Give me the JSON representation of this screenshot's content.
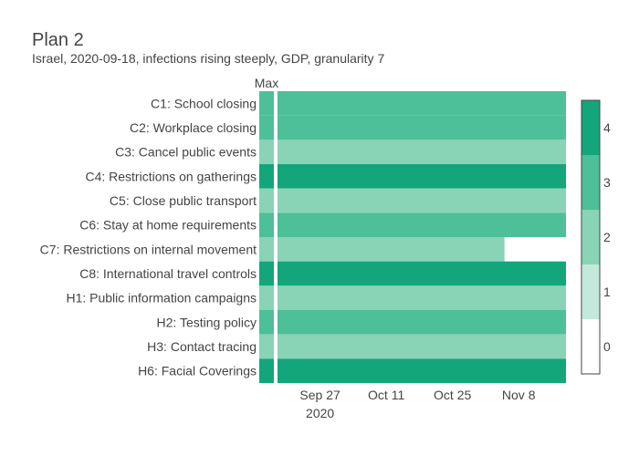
{
  "chart_data": {
    "type": "heatmap",
    "title": "Plan 2",
    "subtitle": "Israel, 2020-09-18, infections rising steeply, GDP, granularity 7",
    "max_label": "Max",
    "rows": [
      {
        "label": "C1: School closing",
        "max": 3,
        "value": 3,
        "end": "2020-11-18"
      },
      {
        "label": "C2: Workplace closing",
        "max": 3,
        "value": 3,
        "end": "2020-11-18"
      },
      {
        "label": "C3: Cancel public events",
        "max": 2,
        "value": 2,
        "end": "2020-11-18"
      },
      {
        "label": "C4: Restrictions on gatherings",
        "max": 4,
        "value": 4,
        "end": "2020-11-18"
      },
      {
        "label": "C5: Close public transport",
        "max": 2,
        "value": 2,
        "end": "2020-11-18"
      },
      {
        "label": "C6: Stay at home requirements",
        "max": 3,
        "value": 3,
        "end": "2020-11-18"
      },
      {
        "label": "C7: Restrictions on internal movement",
        "max": 2,
        "value": 2,
        "end": "2020-11-05"
      },
      {
        "label": "C8: International travel controls",
        "max": 4,
        "value": 4,
        "end": "2020-11-18"
      },
      {
        "label": "H1: Public information campaigns",
        "max": 2,
        "value": 2,
        "end": "2020-11-18"
      },
      {
        "label": "H2: Testing policy",
        "max": 3,
        "value": 3,
        "end": "2020-11-18"
      },
      {
        "label": "H3: Contact tracing",
        "max": 2,
        "value": 2,
        "end": "2020-11-18"
      },
      {
        "label": "H6: Facial Coverings",
        "max": 4,
        "value": 4,
        "end": "2020-11-18"
      }
    ],
    "x_range": [
      "2020-09-18",
      "2020-11-18"
    ],
    "x_ticks": [
      {
        "date": "2020-09-27",
        "label": "Sep 27",
        "sublabel": "2020"
      },
      {
        "date": "2020-10-11",
        "label": "Oct 11",
        "sublabel": ""
      },
      {
        "date": "2020-10-25",
        "label": "Oct 25",
        "sublabel": ""
      },
      {
        "date": "2020-11-08",
        "label": "Nov 8",
        "sublabel": ""
      }
    ],
    "colorbar": {
      "range": [
        -0.5,
        4.5
      ],
      "ticks": [
        "0",
        "1",
        "2",
        "3",
        "4"
      ],
      "colors": [
        "#ffffff",
        "#c5e8dc",
        "#89d3b7",
        "#4dbf99",
        "#13a67a"
      ]
    }
  }
}
